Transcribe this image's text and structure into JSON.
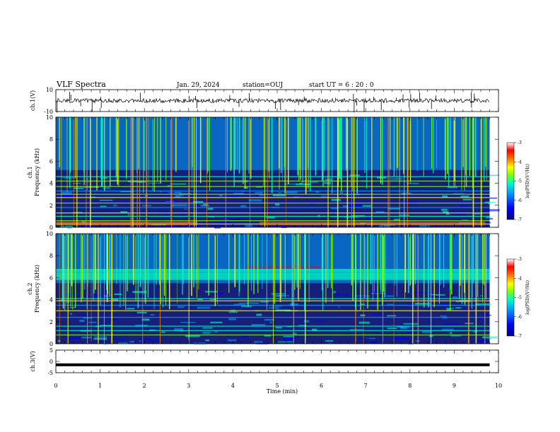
{
  "header": {
    "title": "VLF Spectra",
    "date": "Jan. 29, 2024",
    "station": "station=OUJ",
    "start": "start UT =  6 : 20 : 0"
  },
  "chart_data": [
    {
      "type": "line",
      "panel": "ch1-waveform",
      "ylabel": "ch.1(V)",
      "ylim": [
        -10,
        10
      ],
      "yticks": [
        "10",
        "-10"
      ],
      "baseline_value": 0
    },
    {
      "type": "heatmap",
      "panel": "ch1-spectrogram",
      "ylabel_top": "ch.1",
      "ylabel": "Frequency (kHz)",
      "ylim": [
        0,
        10
      ],
      "yticks": [
        "0",
        "2",
        "4",
        "6",
        "8",
        "10"
      ],
      "colorbar": {
        "label": "log(PSD)(V²/Hz)",
        "range": [
          -7,
          -3
        ],
        "ticks": [
          "-3",
          "-4",
          "-5",
          "-6",
          "-7"
        ]
      },
      "bands_khz": [
        0.3,
        0.6,
        1.0,
        1.3,
        1.8,
        2.2,
        2.7,
        3.0,
        3.3,
        3.7,
        4.2,
        4.6
      ]
    },
    {
      "type": "heatmap",
      "panel": "ch2-spectrogram",
      "ylabel_top": "ch.2",
      "ylabel": "Frequency (kHz)",
      "ylim": [
        0,
        10
      ],
      "yticks": [
        "0",
        "2",
        "4",
        "6",
        "8",
        "10"
      ],
      "colorbar": {
        "label": "log(PSD)(V²/Hz)",
        "range": [
          -7,
          -3
        ],
        "ticks": [
          "-3",
          "-4",
          "-5",
          "-6",
          "-7"
        ]
      },
      "bands_khz": [
        0.8,
        1.2,
        1.6,
        2.4,
        3.0,
        3.5,
        3.9,
        4.1,
        6.5
      ]
    },
    {
      "type": "line",
      "panel": "ch3-waveform",
      "ylabel": "ch.3(V)",
      "ylim": [
        -5,
        5
      ],
      "yticks": [
        "5",
        "0",
        "-5"
      ],
      "baseline_value": -1.5
    }
  ],
  "xaxis": {
    "label": "Time (min)",
    "range": [
      0,
      10
    ],
    "ticks": [
      "0",
      "1",
      "2",
      "3",
      "4",
      "5",
      "6",
      "7",
      "8",
      "9",
      "10"
    ],
    "data_end_min": 9.8
  },
  "colors": {
    "spectrogram_background": "#16207a",
    "colormap": [
      "#000080",
      "#0000ff",
      "#00a0ff",
      "#00ffc0",
      "#80ff00",
      "#ffff00",
      "#ff8000",
      "#ff0000",
      "#ffffff"
    ]
  }
}
